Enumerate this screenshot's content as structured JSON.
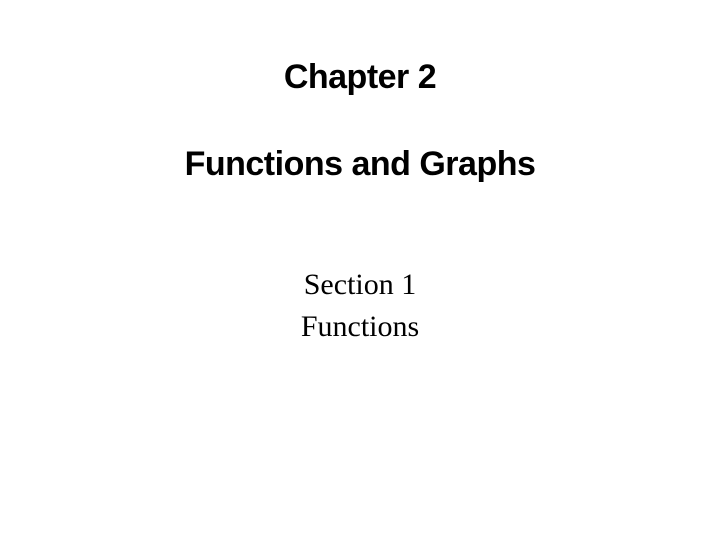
{
  "slide": {
    "chapter_title": "Chapter 2",
    "subtitle": "Functions and Graphs",
    "section_label": "Section 1",
    "section_name": "Functions",
    "styles": {
      "background_color": "#ffffff",
      "heading_font": "Arial Black",
      "heading_fontsize": 34,
      "heading_weight": 900,
      "heading_color": "#000000",
      "body_font": "Times New Roman",
      "body_fontsize": 30,
      "body_weight": 400,
      "body_color": "#000000"
    }
  }
}
